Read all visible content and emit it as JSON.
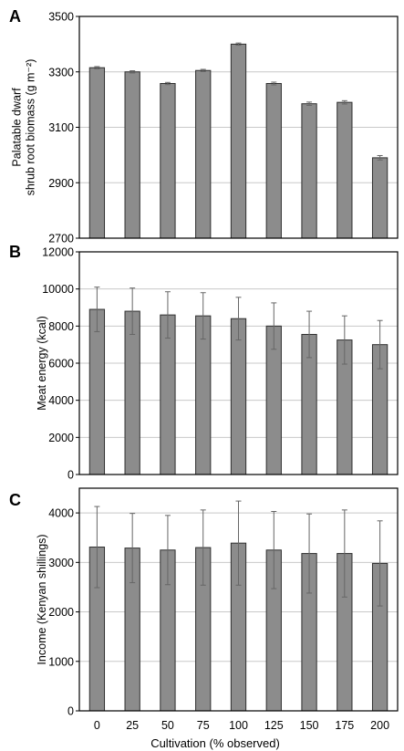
{
  "x_axis_title": "Cultivation (% observed)",
  "chart_data": [
    {
      "type": "bar",
      "panel": "A",
      "categories": [
        "0",
        "25",
        "50",
        "75",
        "100",
        "125",
        "150",
        "175",
        "200"
      ],
      "series": [
        {
          "values": [
            3315,
            3300,
            3258,
            3305,
            3400,
            3258,
            3185,
            3190,
            2990
          ],
          "error": [
            4,
            4,
            4,
            4,
            4,
            5,
            6,
            6,
            8
          ]
        }
      ],
      "ylabel_lines": [
        "Palatable dwarf",
        "shrub root biomass  (g m⁻²)"
      ],
      "xlabel": "",
      "ylim": [
        2700,
        3500
      ],
      "yticks": [
        2700,
        2900,
        3100,
        3300,
        3500
      ],
      "ytick_labels": [
        "2700",
        "2900",
        "3100",
        "3300",
        "3500"
      ],
      "grid": true
    },
    {
      "type": "bar",
      "panel": "B",
      "categories": [
        "0",
        "25",
        "50",
        "75",
        "100",
        "125",
        "150",
        "175",
        "200"
      ],
      "series": [
        {
          "values": [
            8900,
            8800,
            8600,
            8550,
            8400,
            8000,
            7550,
            7250,
            7000
          ],
          "error": [
            1200,
            1250,
            1250,
            1250,
            1150,
            1250,
            1250,
            1300,
            1300
          ]
        }
      ],
      "ylabel_lines": [
        "Meat energy  (kcal)"
      ],
      "xlabel": "",
      "ylim": [
        0,
        12000
      ],
      "yticks": [
        0,
        2000,
        4000,
        6000,
        8000,
        10000,
        12000
      ],
      "ytick_labels": [
        "0",
        "2000",
        "4000",
        "6000",
        "8000",
        "10000",
        "12000"
      ],
      "grid": true
    },
    {
      "type": "bar",
      "panel": "C",
      "categories": [
        "0",
        "25",
        "50",
        "75",
        "100",
        "125",
        "150",
        "175",
        "200"
      ],
      "series": [
        {
          "values": [
            3310,
            3290,
            3250,
            3300,
            3390,
            3250,
            3180,
            3180,
            2980
          ],
          "error": [
            820,
            700,
            700,
            760,
            850,
            780,
            800,
            880,
            860
          ]
        }
      ],
      "ylabel_lines": [
        "Income  (Kenyan shillings)"
      ],
      "xlabel": "Cultivation (% observed)",
      "ylim": [
        0,
        4500
      ],
      "yticks": [
        0,
        1000,
        2000,
        3000,
        4000
      ],
      "ytick_labels": [
        "0",
        "1000",
        "2000",
        "3000",
        "4000"
      ],
      "grid": true
    }
  ],
  "colors": {
    "bar_fill": "#8c8c8c",
    "bar_stroke": "#2f2f2f",
    "grid": "#c8c8c8",
    "axis": "#000000",
    "error_bar": "#666666"
  }
}
